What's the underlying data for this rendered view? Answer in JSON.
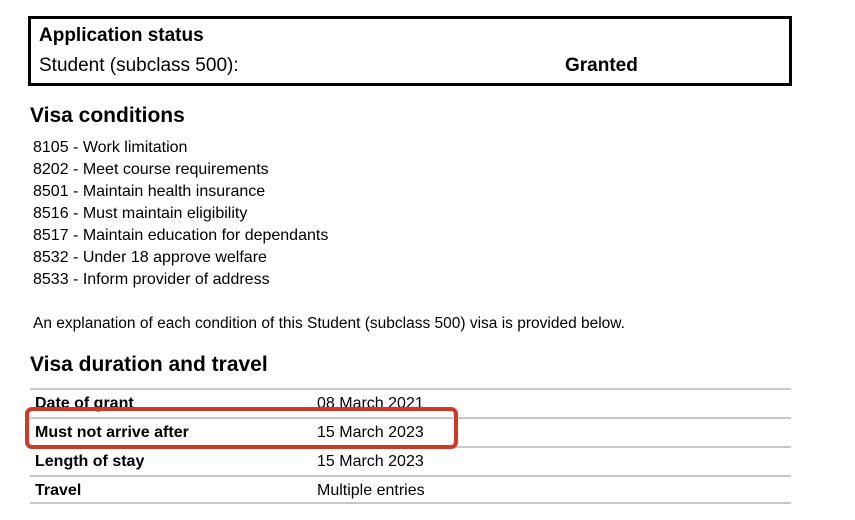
{
  "application_status": {
    "title": "Application status",
    "visa_type": "Student (subclass 500):",
    "status": "Granted"
  },
  "visa_conditions": {
    "heading": "Visa conditions",
    "items": [
      "8105 - Work limitation",
      "8202 - Meet course requirements",
      "8501 - Maintain health insurance",
      "8516 - Must maintain eligibility",
      "8517 - Maintain education for dependants",
      "8532 - Under 18 approve welfare",
      "8533 - Inform provider of address"
    ]
  },
  "explanation": "An explanation of each condition of this Student (subclass 500) visa is provided below.",
  "visa_duration": {
    "heading": "Visa duration and travel",
    "rows": [
      {
        "label": "Date of grant",
        "value": "08 March 2021",
        "highlighted": false
      },
      {
        "label": "Must not arrive after",
        "value": "15 March 2023",
        "highlighted": true
      },
      {
        "label": "Length of stay",
        "value": "15 March 2023",
        "highlighted": false
      },
      {
        "label": "Travel",
        "value": "Multiple entries",
        "highlighted": false
      }
    ]
  },
  "colors": {
    "highlight_border": "#cf3928",
    "table_line": "#c8c8c8",
    "text": "#000000"
  }
}
